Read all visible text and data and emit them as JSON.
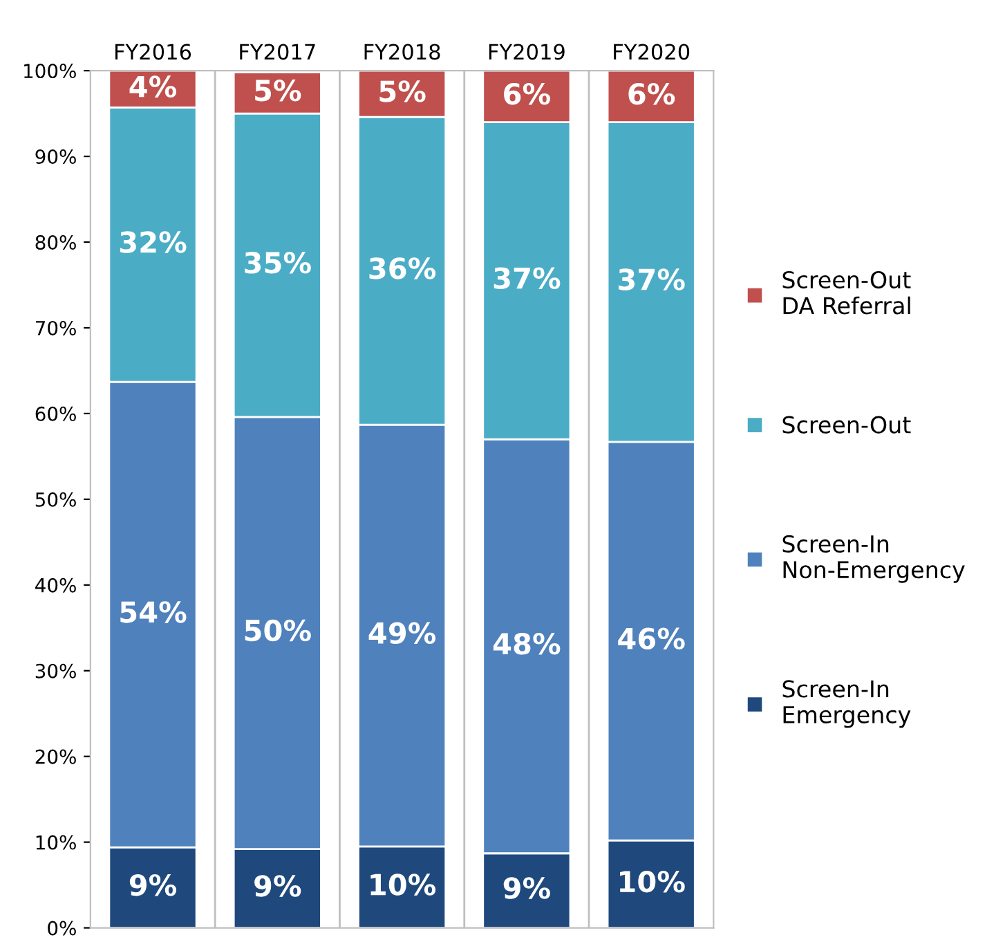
{
  "chart_data": {
    "type": "bar",
    "stacked": true,
    "categories": [
      "FY2016",
      "FY2017",
      "FY2018",
      "FY2019",
      "FY2020"
    ],
    "series": [
      {
        "name": "Screen-In\nEmergency",
        "color": "#1f497d",
        "values": [
          9.4,
          9.2,
          9.5,
          8.7,
          10.2
        ],
        "value_labels": [
          "9%",
          "9%",
          "10%",
          "9%",
          "10%"
        ]
      },
      {
        "name": "Screen-In\nNon-Emergency",
        "color": "#4f81bd",
        "values": [
          54.3,
          50.4,
          49.2,
          48.3,
          46.5
        ],
        "value_labels": [
          "54%",
          "50%",
          "49%",
          "48%",
          "46%"
        ]
      },
      {
        "name": "Screen-Out",
        "color": "#4bacc6",
        "values": [
          32.0,
          35.4,
          35.9,
          37.0,
          37.3
        ],
        "value_labels": [
          "32%",
          "35%",
          "36%",
          "37%",
          "37%"
        ]
      },
      {
        "name": "Screen-Out\nDA Referral",
        "color": "#c0504d",
        "values": [
          4.3,
          4.8,
          5.4,
          6.0,
          6.0
        ],
        "value_labels": [
          "4%",
          "5%",
          "5%",
          "6%",
          "6%"
        ]
      }
    ],
    "ylim": [
      0,
      100
    ],
    "yticks": [
      {
        "value": 0,
        "label": "0%"
      },
      {
        "value": 10,
        "label": "10%"
      },
      {
        "value": 20,
        "label": "20%"
      },
      {
        "value": 30,
        "label": "30%"
      },
      {
        "value": 40,
        "label": "40%"
      },
      {
        "value": 50,
        "label": "50%"
      },
      {
        "value": 60,
        "label": "60%"
      },
      {
        "value": 70,
        "label": "70%"
      },
      {
        "value": 80,
        "label": "80%"
      },
      {
        "value": 90,
        "label": "90%"
      },
      {
        "value": 100,
        "label": "100%"
      }
    ],
    "grid": false,
    "legend": "right"
  }
}
